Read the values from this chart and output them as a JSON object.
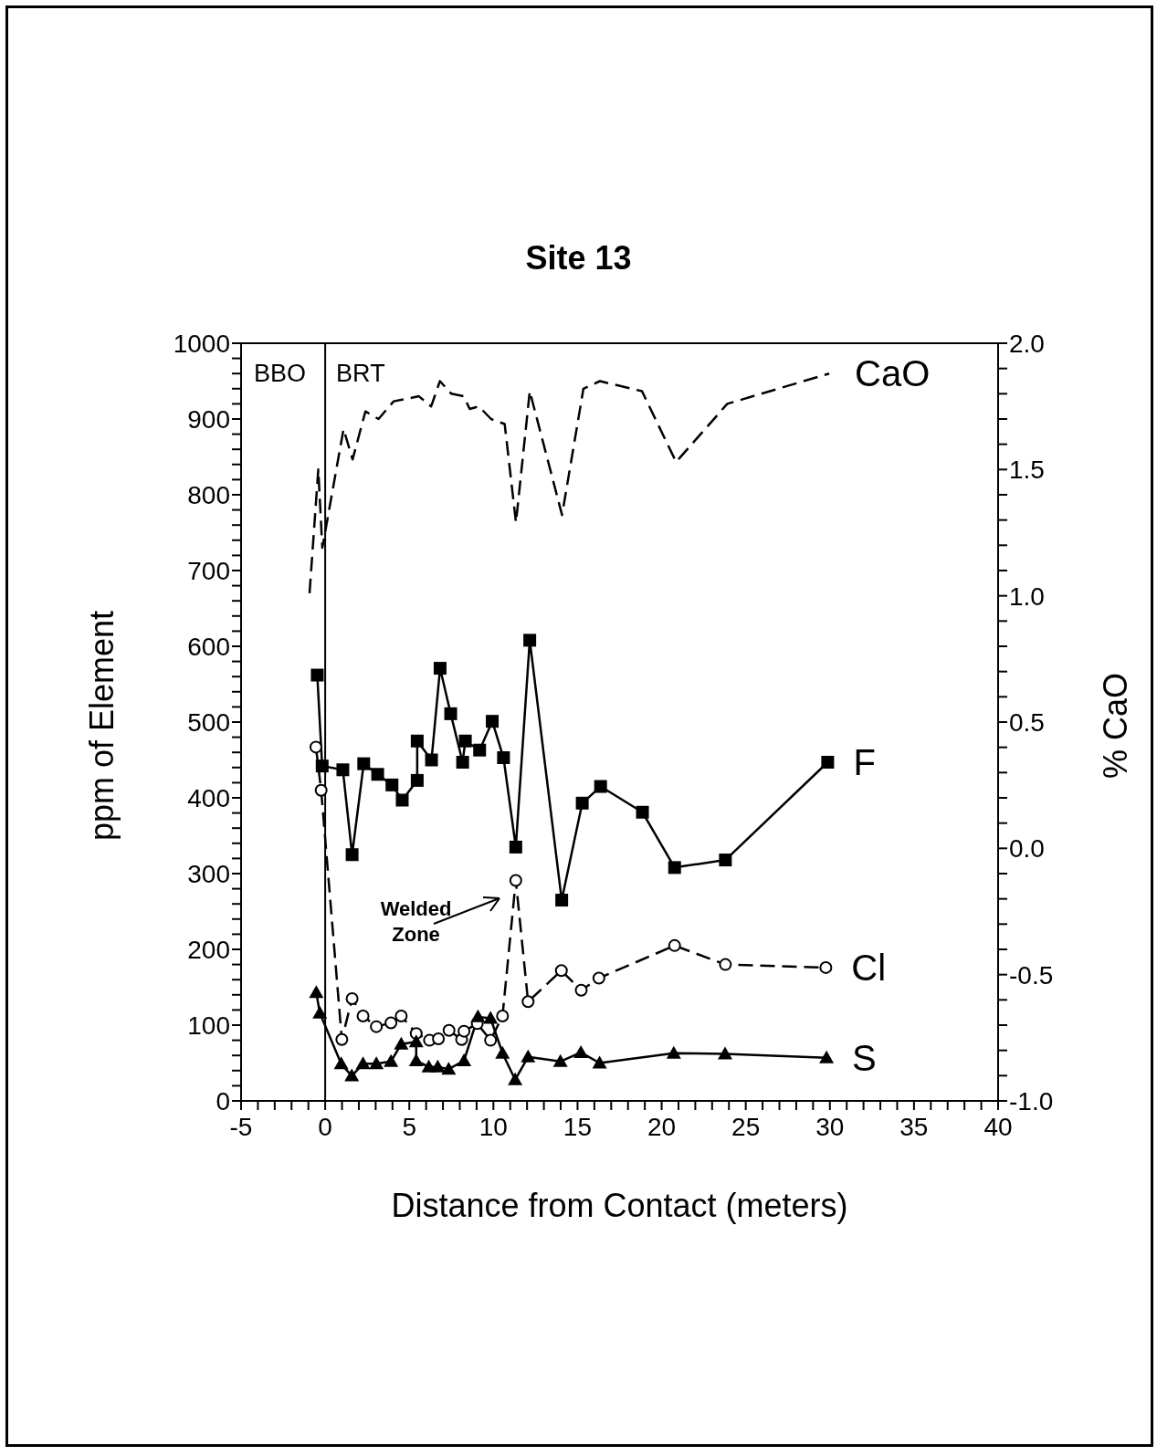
{
  "chart_data": {
    "type": "line",
    "title": "Site 13",
    "xlabel": "Distance from Contact (meters)",
    "ylabel": "ppm of Element",
    "y2label": "% CaO",
    "xlim": [
      -5,
      40
    ],
    "xticks": [
      -5,
      {
        "value": -4,
        "label": null
      },
      {
        "value": -3,
        "label": null
      },
      {
        "value": -2,
        "label": null
      },
      {
        "value": -1,
        "label": null
      },
      0,
      {
        "value": 1,
        "label": null
      },
      {
        "value": 2,
        "label": null
      },
      {
        "value": 3,
        "label": null
      },
      {
        "value": 4,
        "label": null
      },
      5,
      {
        "value": 6,
        "label": null
      },
      {
        "value": 7,
        "label": null
      },
      {
        "value": 8,
        "label": null
      },
      {
        "value": 9,
        "label": null
      },
      10,
      {
        "value": 11,
        "label": null
      },
      {
        "value": 12,
        "label": null
      },
      {
        "value": 13,
        "label": null
      },
      {
        "value": 14,
        "label": null
      },
      15,
      {
        "value": 16,
        "label": null
      },
      {
        "value": 17,
        "label": null
      },
      {
        "value": 18,
        "label": null
      },
      {
        "value": 19,
        "label": null
      },
      20,
      {
        "value": 21,
        "label": null
      },
      {
        "value": 22,
        "label": null
      },
      {
        "value": 23,
        "label": null
      },
      {
        "value": 24,
        "label": null
      },
      25,
      {
        "value": 26,
        "label": null
      },
      {
        "value": 27,
        "label": null
      },
      {
        "value": 28,
        "label": null
      },
      {
        "value": 29,
        "label": null
      },
      30,
      {
        "value": 31,
        "label": null
      },
      {
        "value": 32,
        "label": null
      },
      {
        "value": 33,
        "label": null
      },
      {
        "value": 34,
        "label": null
      },
      35,
      {
        "value": 36,
        "label": null
      },
      {
        "value": 37,
        "label": null
      },
      {
        "value": 38,
        "label": null
      },
      {
        "value": 39,
        "label": null
      },
      40
    ],
    "ylim": [
      0,
      1000
    ],
    "yticks": [
      0,
      {
        "value": 20,
        "label": null
      },
      {
        "value": 40,
        "label": null
      },
      {
        "value": 60,
        "label": null
      },
      {
        "value": 80,
        "label": null
      },
      100,
      {
        "value": 120,
        "label": null
      },
      {
        "value": 140,
        "label": null
      },
      {
        "value": 160,
        "label": null
      },
      {
        "value": 180,
        "label": null
      },
      200,
      {
        "value": 220,
        "label": null
      },
      {
        "value": 240,
        "label": null
      },
      {
        "value": 260,
        "label": null
      },
      {
        "value": 280,
        "label": null
      },
      300,
      {
        "value": 320,
        "label": null
      },
      {
        "value": 340,
        "label": null
      },
      {
        "value": 360,
        "label": null
      },
      {
        "value": 380,
        "label": null
      },
      400,
      {
        "value": 420,
        "label": null
      },
      {
        "value": 440,
        "label": null
      },
      {
        "value": 460,
        "label": null
      },
      {
        "value": 480,
        "label": null
      },
      500,
      {
        "value": 520,
        "label": null
      },
      {
        "value": 540,
        "label": null
      },
      {
        "value": 560,
        "label": null
      },
      {
        "value": 580,
        "label": null
      },
      600,
      {
        "value": 620,
        "label": null
      },
      {
        "value": 640,
        "label": null
      },
      {
        "value": 660,
        "label": null
      },
      {
        "value": 680,
        "label": null
      },
      700,
      {
        "value": 720,
        "label": null
      },
      {
        "value": 740,
        "label": null
      },
      {
        "value": 760,
        "label": null
      },
      {
        "value": 780,
        "label": null
      },
      800,
      {
        "value": 820,
        "label": null
      },
      {
        "value": 840,
        "label": null
      },
      {
        "value": 860,
        "label": null
      },
      {
        "value": 880,
        "label": null
      },
      900,
      {
        "value": 920,
        "label": null
      },
      {
        "value": 940,
        "label": null
      },
      {
        "value": 960,
        "label": null
      },
      {
        "value": 980,
        "label": null
      },
      1000
    ],
    "y2lim": [
      -1,
      2
    ],
    "y2ticks": [
      {
        "value": -1,
        "label": "-1.0"
      },
      {
        "value": -0.9,
        "label": null
      },
      {
        "value": -0.8,
        "label": null
      },
      {
        "value": -0.7,
        "label": null
      },
      {
        "value": -0.6,
        "label": null
      },
      {
        "value": -0.5,
        "label": "-0.5"
      },
      {
        "value": -0.4,
        "label": null
      },
      {
        "value": -0.3,
        "label": null
      },
      {
        "value": -0.2,
        "label": null
      },
      {
        "value": -0.1,
        "label": null
      },
      {
        "value": 0,
        "label": "0.0"
      },
      {
        "value": 0.1,
        "label": null
      },
      {
        "value": 0.2,
        "label": null
      },
      {
        "value": 0.3,
        "label": null
      },
      {
        "value": 0.4,
        "label": null
      },
      0.5,
      {
        "value": 0.6,
        "label": null
      },
      {
        "value": 0.7,
        "label": null
      },
      {
        "value": 0.8,
        "label": null
      },
      {
        "value": 0.9,
        "label": null
      },
      {
        "value": 1,
        "label": "1.0"
      },
      {
        "value": 1.1,
        "label": null
      },
      {
        "value": 1.2,
        "label": null
      },
      {
        "value": 1.3,
        "label": null
      },
      {
        "value": 1.4,
        "label": null
      },
      1.5,
      {
        "value": 1.6,
        "label": null
      },
      {
        "value": 1.7,
        "label": null
      },
      {
        "value": 1.8,
        "label": null
      },
      {
        "value": 1.9,
        "label": null
      },
      {
        "value": 2,
        "label": "2.0"
      }
    ],
    "ref_lines": [
      {
        "axis": "x",
        "value": 0,
        "color": "#000000",
        "line_style": "solid"
      }
    ],
    "annotations": [
      "BBO",
      "BRT",
      "Welded Zone"
    ],
    "series": [
      {
        "name": "CaO",
        "color": "#000000",
        "axis": "y2",
        "marker": "none",
        "line_style": "dashed",
        "x": [
          -0.93,
          -0.41,
          -0.17,
          1.09,
          1.63,
          2.39,
          3.17,
          4.07,
          5.57,
          6.3,
          6.82,
          7.5,
          8.23,
          8.59,
          9.13,
          9.86,
          10.67,
          11.34,
          12.16,
          14.08,
          15.35,
          16.33,
          18.83,
          20.86,
          23.9,
          29.96
        ],
        "values": [
          1.01,
          1.5,
          1.19,
          1.66,
          1.54,
          1.73,
          1.7,
          1.77,
          1.79,
          1.75,
          1.85,
          1.8,
          1.79,
          1.74,
          1.75,
          1.7,
          1.68,
          1.29,
          1.81,
          1.32,
          1.82,
          1.85,
          1.81,
          1.53,
          1.76,
          1.88
        ]
      },
      {
        "name": "F",
        "color": "#000000",
        "marker": "square",
        "line_style": "solid",
        "x": [
          -0.47,
          -0.18,
          1.05,
          1.6,
          2.29,
          3.12,
          3.97,
          4.58,
          5.47,
          5.47,
          6.32,
          6.83,
          7.46,
          8.17,
          8.33,
          9.18,
          9.93,
          10.6,
          11.33,
          12.16,
          14.06,
          15.28,
          16.37,
          18.86,
          20.77,
          23.79,
          29.87
        ],
        "values": [
          562,
          442,
          437,
          325,
          445,
          431,
          417,
          397,
          423,
          475,
          450,
          571,
          511,
          447,
          475,
          463,
          501,
          453,
          335,
          608,
          265,
          393,
          415,
          381,
          308,
          318,
          447
        ]
      },
      {
        "name": "Cl",
        "color": "#000000",
        "marker": "circle",
        "line_style": "dashed",
        "x": [
          -0.55,
          -0.24,
          0.99,
          1.6,
          2.25,
          3.04,
          3.91,
          4.52,
          5.41,
          6.2,
          6.73,
          7.36,
          8.11,
          8.25,
          9.04,
          9.83,
          10.54,
          11.33,
          12.06,
          14.04,
          15.22,
          16.27,
          20.77,
          23.79,
          29.76
        ],
        "values": [
          467,
          410,
          81,
          135,
          112,
          98,
          103,
          112,
          89,
          80,
          82,
          93,
          81,
          92,
          102,
          80,
          112,
          291,
          131,
          172,
          146,
          162,
          205,
          180,
          176
        ]
      },
      {
        "name": "S",
        "color": "#000000",
        "marker": "triangle",
        "line_style": "solid",
        "x": [
          -0.53,
          -0.32,
          0.95,
          1.58,
          2.25,
          3.04,
          3.91,
          4.52,
          5.41,
          5.41,
          6.16,
          6.69,
          7.34,
          8.25,
          9.08,
          9.83,
          10.54,
          11.29,
          12.06,
          13.98,
          15.2,
          16.31,
          20.72,
          23.77,
          29.8
        ],
        "values": [
          143,
          116,
          49,
          33,
          49,
          49,
          52,
          75,
          78,
          53,
          45,
          45,
          42,
          53,
          111,
          109,
          63,
          28,
          58,
          52,
          64,
          50,
          63,
          62,
          57
        ]
      }
    ]
  }
}
